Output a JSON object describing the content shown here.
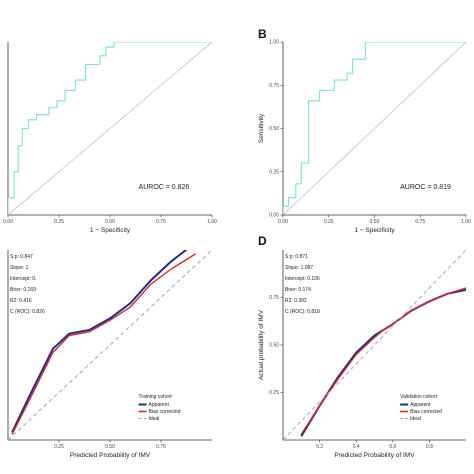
{
  "chart_data": [
    {
      "panel": "A",
      "panel_label": "",
      "type": "line",
      "xlabel": "1 − Specificity",
      "ylabel": "",
      "xlim": [
        0,
        1
      ],
      "ylim": [
        0,
        1
      ],
      "x_ticks": [
        "0.00",
        "0.25",
        "0.50",
        "0.75",
        "1.00"
      ],
      "y_ticks": [],
      "annotation": "AUROC = 0.826",
      "series": [
        {
          "role": "roc",
          "color": "#7fe0d6",
          "x": [
            0.0,
            0.0,
            0.03,
            0.03,
            0.05,
            0.05,
            0.07,
            0.07,
            0.1,
            0.1,
            0.14,
            0.14,
            0.2,
            0.2,
            0.24,
            0.24,
            0.28,
            0.28,
            0.33,
            0.33,
            0.38,
            0.38,
            0.45,
            0.45,
            0.48,
            0.48,
            0.52,
            0.52,
            1.0
          ],
          "y": [
            0.0,
            0.1,
            0.1,
            0.25,
            0.25,
            0.4,
            0.4,
            0.5,
            0.5,
            0.55,
            0.55,
            0.58,
            0.58,
            0.62,
            0.62,
            0.66,
            0.66,
            0.72,
            0.72,
            0.78,
            0.78,
            0.87,
            0.87,
            0.92,
            0.92,
            0.97,
            0.97,
            1.0,
            1.0
          ]
        },
        {
          "role": "reference",
          "color": "#bbbbbb",
          "x": [
            0,
            1
          ],
          "y": [
            0,
            1
          ]
        }
      ]
    },
    {
      "panel": "B",
      "panel_label": "B",
      "type": "line",
      "xlabel": "1 − Specificity",
      "ylabel": "Sensitivity",
      "xlim": [
        0,
        1
      ],
      "ylim": [
        0,
        1
      ],
      "x_ticks": [
        "0.00",
        "0.25",
        "0.50",
        "0.75",
        "1.00"
      ],
      "y_ticks": [
        "0.00",
        "0.25",
        "0.50",
        "0.75",
        "1.00"
      ],
      "annotation": "AUROC = 0.819",
      "series": [
        {
          "role": "roc",
          "color": "#7fe0d6",
          "x": [
            0.0,
            0.0,
            0.03,
            0.03,
            0.07,
            0.07,
            0.1,
            0.1,
            0.14,
            0.14,
            0.2,
            0.2,
            0.28,
            0.28,
            0.35,
            0.35,
            0.38,
            0.38,
            0.45,
            0.45,
            1.0
          ],
          "y": [
            0.0,
            0.05,
            0.05,
            0.1,
            0.1,
            0.18,
            0.18,
            0.3,
            0.3,
            0.66,
            0.66,
            0.72,
            0.72,
            0.78,
            0.78,
            0.82,
            0.82,
            0.9,
            0.9,
            1.0,
            1.0
          ]
        },
        {
          "role": "reference",
          "color": "#bbbbbb",
          "x": [
            0,
            1
          ],
          "y": [
            0,
            1
          ]
        }
      ]
    },
    {
      "panel": "C",
      "panel_label": "",
      "type": "line",
      "xlabel": "Predicted Probability of IMV",
      "ylabel": "",
      "xlim": [
        0,
        1
      ],
      "ylim": [
        0,
        1
      ],
      "x_ticks": [
        "0.25",
        "0.50",
        "0.75"
      ],
      "y_ticks": [],
      "stats": [
        "S:p: 0.847",
        "Slope: 1",
        "Intercept: 0.",
        "Brier: 0.169",
        "R2: 0.416",
        "C (ROC): 0.826"
      ],
      "legend_title": "Training cohort",
      "legend_entries": [
        "Apparent",
        "Bias corrected",
        "Ideal"
      ],
      "series": [
        {
          "name": "Apparent",
          "color": "#1f2d8c",
          "x": [
            0.02,
            0.1,
            0.22,
            0.3,
            0.4,
            0.5,
            0.6,
            0.7,
            0.8,
            0.92
          ],
          "y": [
            0.04,
            0.22,
            0.48,
            0.56,
            0.58,
            0.64,
            0.72,
            0.84,
            0.94,
            1.04
          ]
        },
        {
          "name": "Bias corrected",
          "color": "#d42a2a",
          "x": [
            0.02,
            0.1,
            0.22,
            0.3,
            0.4,
            0.5,
            0.6,
            0.7,
            0.8,
            0.92
          ],
          "y": [
            0.03,
            0.2,
            0.46,
            0.55,
            0.57,
            0.63,
            0.7,
            0.82,
            0.9,
            0.98
          ]
        },
        {
          "name": "Ideal",
          "color": "#b09bd0",
          "x": [
            0,
            1
          ],
          "y": [
            0,
            1
          ]
        }
      ]
    },
    {
      "panel": "D",
      "panel_label": "D",
      "type": "line",
      "xlabel": "Predicted Probability of IMV",
      "ylabel": "Actual probability of IMV",
      "xlim": [
        0,
        1
      ],
      "ylim": [
        0,
        1
      ],
      "x_ticks": [
        "0.2",
        "0.4",
        "0.6",
        "0.8"
      ],
      "y_ticks": [
        "0.25",
        "0.50",
        "0.75"
      ],
      "stats": [
        "S:p: 0.871",
        "Slope: 1.087",
        "Intercept: 0.106",
        "Brier: 0.174",
        "R2: 0.392",
        "C (ROC): 0.818"
      ],
      "legend_title": "Validation cohort",
      "legend_entries": [
        "Apparent",
        "Bias corrected",
        "Ideal"
      ],
      "series": [
        {
          "name": "Apparent",
          "color": "#1f2d8c",
          "x": [
            0.1,
            0.2,
            0.3,
            0.4,
            0.5,
            0.55,
            0.6,
            0.7,
            0.8,
            0.9,
            1.0
          ],
          "y": [
            0.02,
            0.18,
            0.33,
            0.46,
            0.55,
            0.58,
            0.61,
            0.68,
            0.73,
            0.77,
            0.79
          ]
        },
        {
          "name": "Bias corrected",
          "color": "#d42a2a",
          "x": [
            0.1,
            0.2,
            0.3,
            0.4,
            0.5,
            0.55,
            0.6,
            0.7,
            0.8,
            0.9,
            1.0
          ],
          "y": [
            0.03,
            0.18,
            0.32,
            0.45,
            0.54,
            0.58,
            0.61,
            0.68,
            0.73,
            0.77,
            0.8
          ]
        },
        {
          "name": "Ideal",
          "color": "#b09bd0",
          "x": [
            0,
            1
          ],
          "y": [
            0,
            1
          ]
        }
      ]
    }
  ]
}
